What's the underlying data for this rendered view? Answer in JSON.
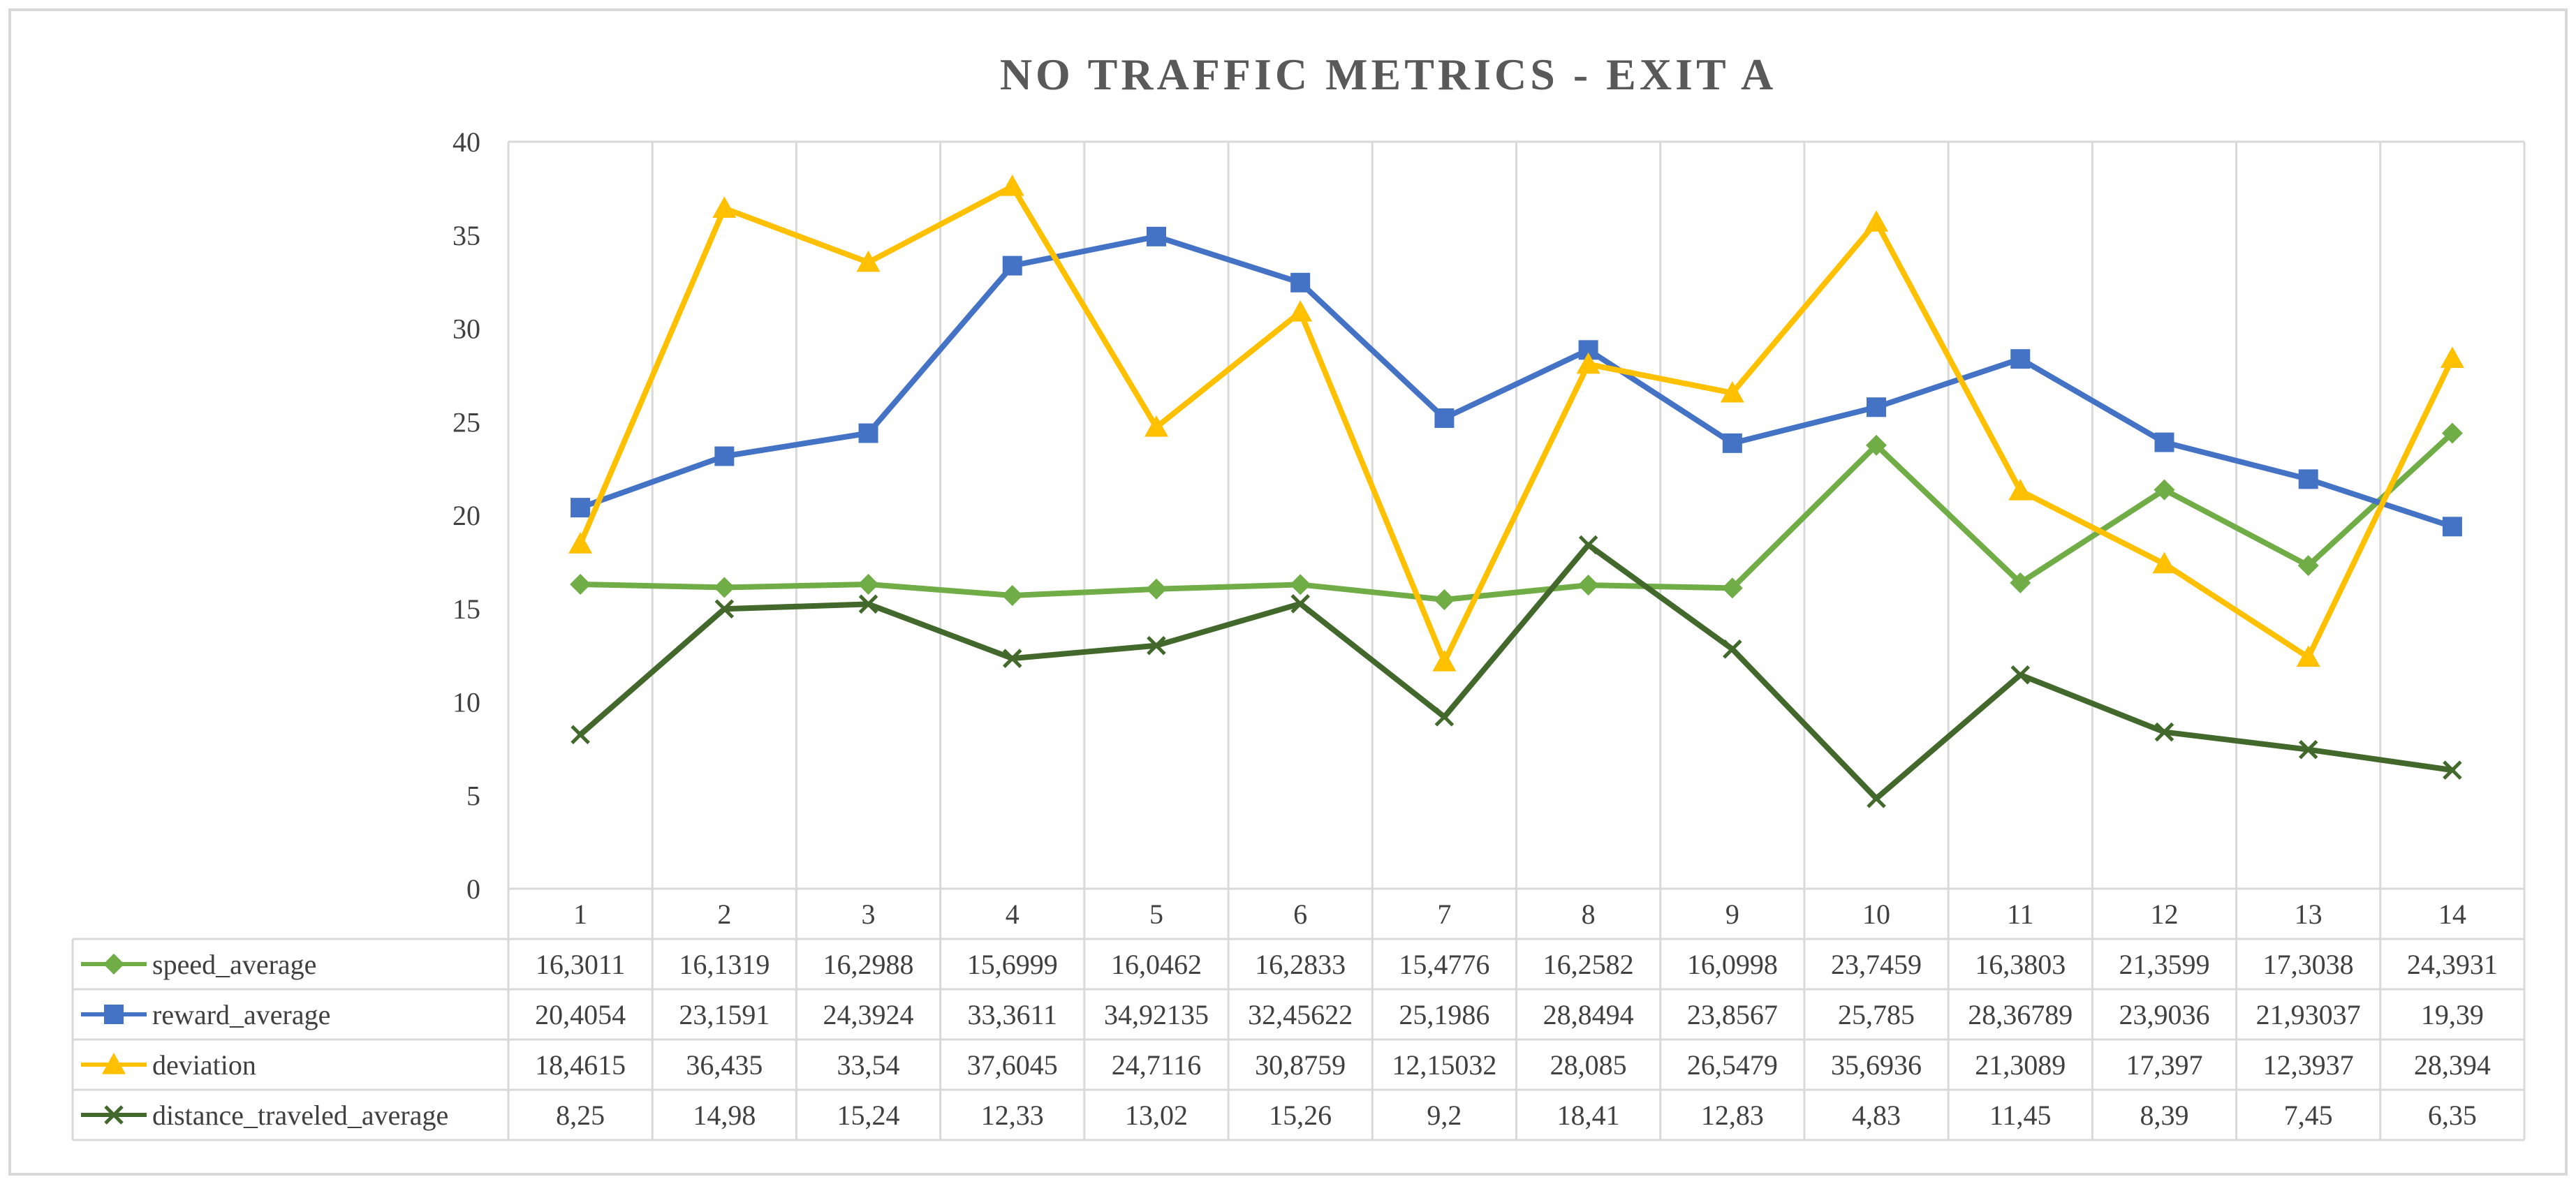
{
  "chart_data": {
    "type": "line",
    "title": "NO TRAFFIC METRICS - EXIT A",
    "xlabel": "",
    "ylabel": "",
    "ylim": [
      0,
      40
    ],
    "yticks": [
      "0",
      "5",
      "10",
      "15",
      "20",
      "25",
      "30",
      "35",
      "40"
    ],
    "categories": [
      "1",
      "2",
      "3",
      "4",
      "5",
      "6",
      "7",
      "8",
      "9",
      "10",
      "11",
      "12",
      "13",
      "14"
    ],
    "grid": "vertical",
    "legend": "data-table-bottom",
    "series": [
      {
        "name": "speed_average",
        "color": "#70AD47",
        "marker": "diamond",
        "values": [
          16.3011,
          16.1319,
          16.2988,
          15.6999,
          16.0462,
          16.2833,
          15.4776,
          16.2582,
          16.0998,
          23.7459,
          16.3803,
          21.3599,
          17.3038,
          24.3931
        ],
        "labels": [
          "16,3011",
          "16,1319",
          "16,2988",
          "15,6999",
          "16,0462",
          "16,2833",
          "15,4776",
          "16,2582",
          "16,0998",
          "23,7459",
          "16,3803",
          "21,3599",
          "17,3038",
          "24,3931"
        ]
      },
      {
        "name": "reward_average",
        "color": "#4472C4",
        "marker": "square",
        "values": [
          20.4054,
          23.1591,
          24.3924,
          33.3611,
          34.92135,
          32.45622,
          25.1986,
          28.8494,
          23.8567,
          25.785,
          28.36789,
          23.9036,
          21.93037,
          19.39
        ],
        "labels": [
          "20,4054",
          "23,1591",
          "24,3924",
          "33,3611",
          "34,92135",
          "32,45622",
          "25,1986",
          "28,8494",
          "23,8567",
          "25,785",
          "28,36789",
          "23,9036",
          "21,93037",
          "19,39"
        ]
      },
      {
        "name": "deviation",
        "color": "#FFC000",
        "marker": "triangle",
        "values": [
          18.4615,
          36.435,
          33.54,
          37.6045,
          24.7116,
          30.8759,
          12.15032,
          28.085,
          26.5479,
          35.6936,
          21.3089,
          17.397,
          12.3937,
          28.394
        ],
        "labels": [
          "18,4615",
          "36,435",
          "33,54",
          "37,6045",
          "24,7116",
          "30,8759",
          "12,15032",
          "28,085",
          "26,5479",
          "35,6936",
          "21,3089",
          "17,397",
          "12,3937",
          "28,394"
        ]
      },
      {
        "name": "distance_traveled_average",
        "color": "#43682B",
        "marker": "x",
        "values": [
          8.25,
          14.98,
          15.24,
          12.33,
          13.02,
          15.26,
          9.2,
          18.41,
          12.83,
          4.83,
          11.45,
          8.39,
          7.45,
          6.35
        ],
        "labels": [
          "8,25",
          "14,98",
          "15,24",
          "12,33",
          "13,02",
          "15,26",
          "9,2",
          "18,41",
          "12,83",
          "4,83",
          "11,45",
          "8,39",
          "7,45",
          "6,35"
        ]
      }
    ]
  }
}
